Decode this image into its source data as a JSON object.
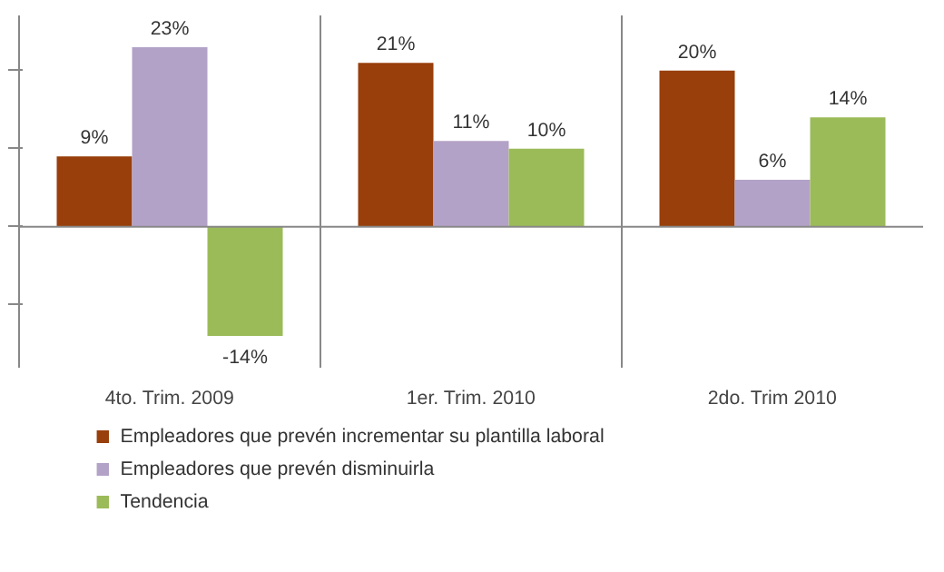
{
  "chart_data": {
    "type": "bar",
    "categories": [
      "4to. Trim. 2009",
      "1er. Trim. 2010",
      "2do. Trim 2010"
    ],
    "series": [
      {
        "name": "Empleadores que prevén incrementar su plantilla  laboral",
        "color": "#983f0b",
        "values": [
          9,
          21,
          20
        ],
        "value_labels": [
          "9%",
          "21%",
          "20%"
        ]
      },
      {
        "name": "Empleadores que prevén disminuirla",
        "color": "#b3a2c7",
        "values": [
          23,
          11,
          6
        ],
        "value_labels": [
          "23%",
          "11%",
          "6%"
        ]
      },
      {
        "name": "Tendencia",
        "color": "#9bbb59",
        "values": [
          -14,
          10,
          14
        ],
        "value_labels": [
          "-14%",
          "10%",
          "14%"
        ]
      }
    ],
    "tick_labels": "x",
    "legend": "bottom"
  }
}
